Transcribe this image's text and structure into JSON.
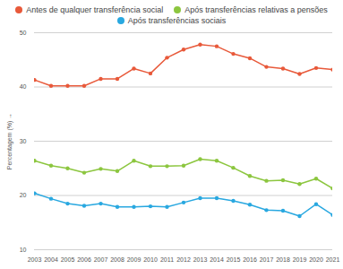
{
  "chart_data": {
    "type": "line",
    "x": [
      2003,
      2004,
      2005,
      2006,
      2007,
      2008,
      2009,
      2010,
      2011,
      2012,
      2013,
      2014,
      2015,
      2016,
      2017,
      2018,
      2019,
      2020,
      2021
    ],
    "series": [
      {
        "name": "Antes de qualquer transferência social",
        "color": "#e8593a",
        "values": [
          41.3,
          40.2,
          40.2,
          40.2,
          41.5,
          41.5,
          43.4,
          42.5,
          45.4,
          46.9,
          47.8,
          47.5,
          46.1,
          45.3,
          43.7,
          43.4,
          42.4,
          43.5,
          43.2
        ]
      },
      {
        "name": "Após transferências relativas a pensões",
        "color": "#8cc63f",
        "values": [
          26.4,
          25.5,
          25.0,
          24.2,
          24.9,
          24.5,
          26.4,
          25.4,
          25.4,
          25.5,
          26.7,
          26.4,
          25.1,
          23.6,
          22.7,
          22.8,
          22.1,
          23.1,
          21.3
        ]
      },
      {
        "name": "Após transferências sociais",
        "color": "#29a8e0",
        "values": [
          20.4,
          19.4,
          18.5,
          18.1,
          18.5,
          17.9,
          17.9,
          18.0,
          17.9,
          18.7,
          19.5,
          19.5,
          19.0,
          18.3,
          17.3,
          17.2,
          16.2,
          18.4,
          16.4
        ]
      }
    ],
    "y_label": "Percentagem (%)",
    "xlim": [
      2003,
      2021
    ],
    "xticks": [
      2003,
      2004,
      2005,
      2006,
      2007,
      2008,
      2009,
      2010,
      2011,
      2012,
      2013,
      2014,
      2015,
      2016,
      2017,
      2018,
      2019,
      2020,
      2021
    ],
    "ylim": [
      10,
      50
    ],
    "yticks": [
      10,
      20,
      30,
      40,
      50
    ],
    "grid": true,
    "marker": "circle",
    "legend": "top"
  }
}
